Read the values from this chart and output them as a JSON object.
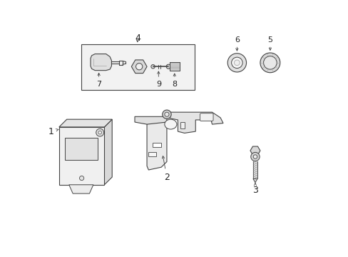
{
  "background_color": "#ffffff",
  "line_color": "#444444",
  "light_gray": "#e8e8e8",
  "mid_gray": "#d0d0d0",
  "dark_gray": "#b8b8b8",
  "white": "#ffffff"
}
